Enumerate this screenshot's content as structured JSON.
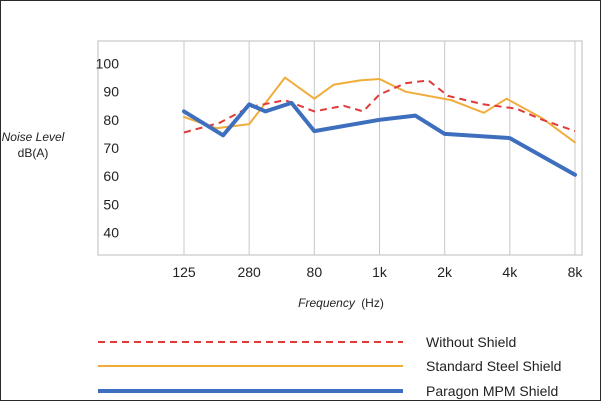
{
  "chart_data": {
    "type": "line",
    "ylabel": "Noise Level",
    "ylabel_unit": "dB(A)",
    "xlabel_word": "Frequency",
    "xlabel_unit": "(Hz)",
    "x_ticks": [
      "125",
      "280",
      "80",
      "1k",
      "2k",
      "4k",
      "8k"
    ],
    "y_ticks": [
      40,
      50,
      60,
      70,
      80,
      90,
      100
    ],
    "ylim": [
      32,
      108
    ],
    "x_index_range": [
      0,
      6
    ],
    "grid": {
      "vertical": true,
      "horizontal": false
    },
    "legend_position": "bottom",
    "series": [
      {
        "name": "Without Shield",
        "color": "#e03a3a",
        "style": "dashed",
        "points": [
          [
            0,
            75.5
          ],
          [
            0.55,
            79
          ],
          [
            1.0,
            84.5
          ],
          [
            1.55,
            87
          ],
          [
            2.0,
            83
          ],
          [
            2.45,
            85
          ],
          [
            2.75,
            83
          ],
          [
            3.0,
            89
          ],
          [
            3.4,
            93
          ],
          [
            3.75,
            94
          ],
          [
            4.05,
            88.5
          ],
          [
            4.6,
            85.5
          ],
          [
            5.1,
            84
          ],
          [
            5.5,
            80
          ],
          [
            6.0,
            76
          ]
        ]
      },
      {
        "name": "Standard Steel Shield",
        "color": "#f0ad3c",
        "style": "solid",
        "points": [
          [
            0,
            81
          ],
          [
            0.5,
            77
          ],
          [
            1.0,
            78.5
          ],
          [
            1.55,
            95
          ],
          [
            2.0,
            87.5
          ],
          [
            2.3,
            92.5
          ],
          [
            2.7,
            94
          ],
          [
            3.0,
            94.5
          ],
          [
            3.4,
            90
          ],
          [
            4.1,
            87
          ],
          [
            4.6,
            82.5
          ],
          [
            4.95,
            87.5
          ],
          [
            5.5,
            80.5
          ],
          [
            6.0,
            72
          ]
        ]
      },
      {
        "name": "Paragon MPM Shield",
        "color": "#3e6fbe",
        "style": "solid",
        "points": [
          [
            0,
            83
          ],
          [
            0.6,
            74.5
          ],
          [
            1.0,
            85.5
          ],
          [
            1.25,
            83
          ],
          [
            1.65,
            86
          ],
          [
            2.0,
            76
          ],
          [
            3.0,
            80
          ],
          [
            3.55,
            81.5
          ],
          [
            4.0,
            75
          ],
          [
            5.0,
            73.5
          ],
          [
            6.0,
            60.5
          ]
        ]
      }
    ]
  }
}
